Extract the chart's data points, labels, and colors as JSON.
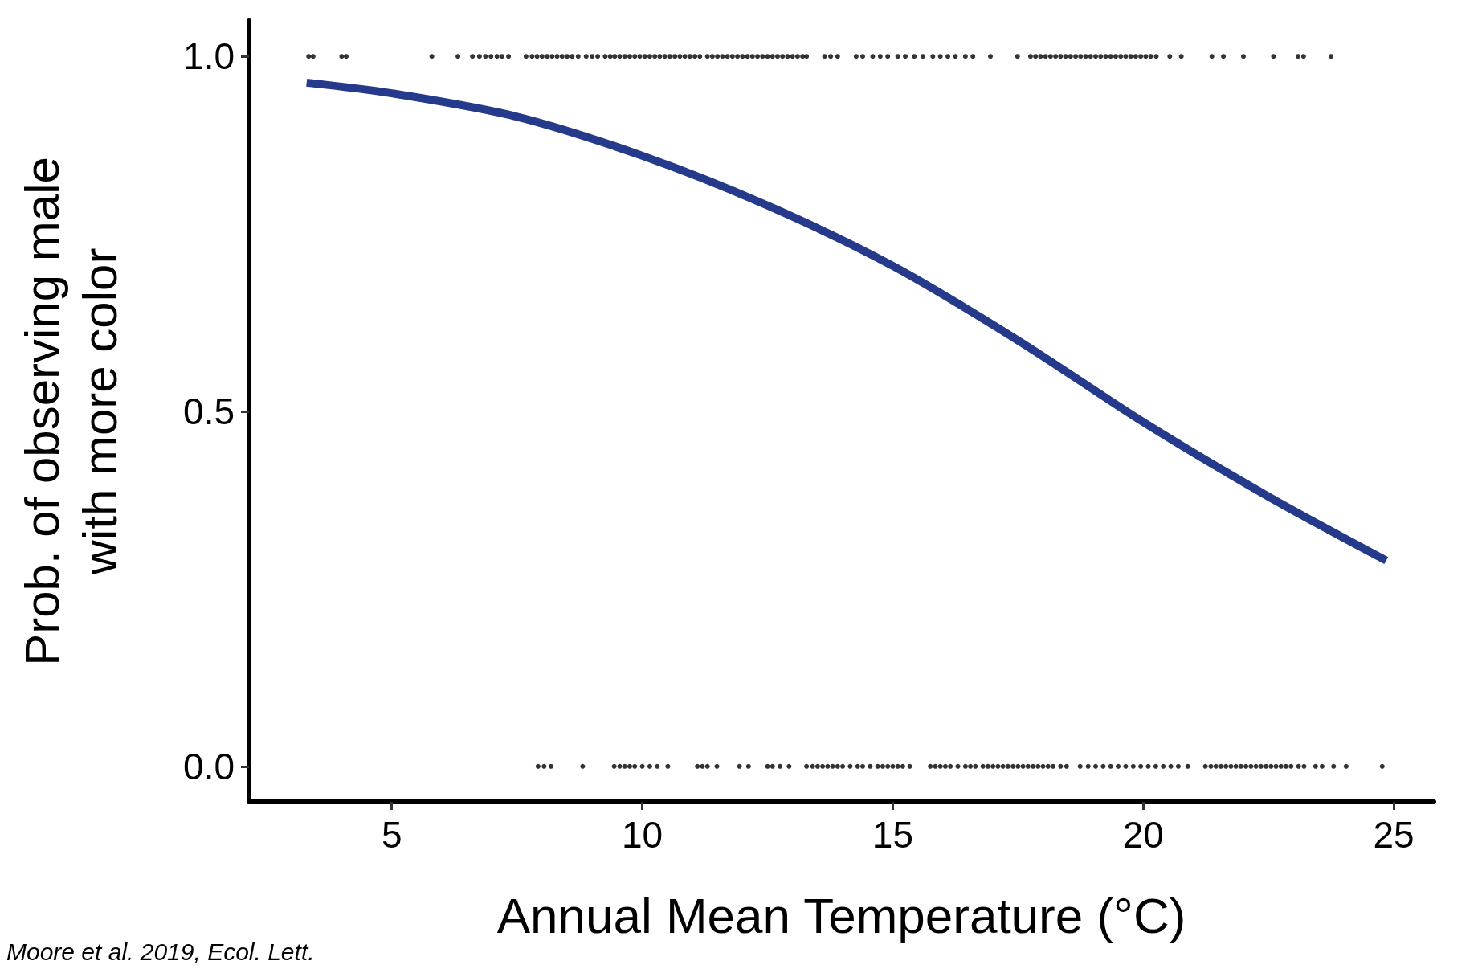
{
  "chart_data": {
    "type": "line",
    "xlabel": "Annual Mean Temperature (°C)",
    "ylabel": "Prob. of observing male\nwith more color",
    "annotations": [
      "Moore et al. 2019, Ecol. Lett."
    ],
    "xlim": [
      2.15,
      25.8
    ],
    "xticks": [
      5,
      10,
      15,
      20,
      25
    ],
    "ylim": [
      -0.05,
      1.05
    ],
    "yticks": [
      {
        "value": 0,
        "label": "0.0"
      },
      {
        "value": 0.5,
        "label": "0.5"
      },
      {
        "value": 1,
        "label": "1.0"
      }
    ],
    "series": [
      {
        "color": "#253a8a",
        "marker": "none",
        "x": [
          3.3,
          5,
          7.5,
          10,
          12.5,
          15,
          17.5,
          20,
          22.5,
          24.85
        ],
        "values": [
          0.963,
          0.948,
          0.915,
          0.86,
          0.79,
          0.705,
          0.6,
          0.485,
          0.38,
          0.29
        ]
      },
      {
        "type": "scatter",
        "color": "#000000",
        "x": [
          3.34,
          3.43,
          4.0,
          4.09,
          5.8,
          6.32,
          6.61,
          6.75,
          6.87,
          6.98,
          7.1,
          7.2,
          7.33,
          7.68,
          7.8,
          7.9,
          8.0,
          8.1,
          8.2,
          8.3,
          8.4,
          8.5,
          8.6,
          8.72,
          8.88,
          9.0,
          9.11,
          9.26,
          9.36,
          9.45,
          9.55,
          9.65,
          9.75,
          9.85,
          9.95,
          10.05,
          10.15,
          10.25,
          10.35,
          10.45,
          10.55,
          10.65,
          10.75,
          10.85,
          10.95,
          11.05,
          11.15,
          11.3,
          11.4,
          11.5,
          11.6,
          11.7,
          11.8,
          11.9,
          12.0,
          12.1,
          12.2,
          12.3,
          12.4,
          12.5,
          12.6,
          12.7,
          12.8,
          12.9,
          13.0,
          13.1,
          13.2,
          13.28,
          13.64,
          13.76,
          13.9,
          14.27,
          14.4,
          14.6,
          14.75,
          14.9,
          15.1,
          15.25,
          15.43,
          15.6,
          15.8,
          15.95,
          16.1,
          16.25,
          16.45,
          16.6,
          16.95,
          17.49,
          17.75,
          17.85,
          17.95,
          18.05,
          18.15,
          18.25,
          18.35,
          18.45,
          18.55,
          18.65,
          18.75,
          18.85,
          18.95,
          19.05,
          19.15,
          19.25,
          19.35,
          19.45,
          19.55,
          19.65,
          19.75,
          19.85,
          19.95,
          20.05,
          20.15,
          20.26,
          20.53,
          20.76,
          21.37,
          21.6,
          22.0,
          22.6,
          23.09,
          23.2,
          23.75
        ],
        "values": [
          1,
          1,
          1,
          1,
          1,
          1,
          1,
          1,
          1,
          1,
          1,
          1,
          1,
          1,
          1,
          1,
          1,
          1,
          1,
          1,
          1,
          1,
          1,
          1,
          1,
          1,
          1,
          1,
          1,
          1,
          1,
          1,
          1,
          1,
          1,
          1,
          1,
          1,
          1,
          1,
          1,
          1,
          1,
          1,
          1,
          1,
          1,
          1,
          1,
          1,
          1,
          1,
          1,
          1,
          1,
          1,
          1,
          1,
          1,
          1,
          1,
          1,
          1,
          1,
          1,
          1,
          1,
          1,
          1,
          1,
          1,
          1,
          1,
          1,
          1,
          1,
          1,
          1,
          1,
          1,
          1,
          1,
          1,
          1,
          1,
          1,
          1,
          1,
          1,
          1,
          1,
          1,
          1,
          1,
          1,
          1,
          1,
          1,
          1,
          1,
          1,
          1,
          1,
          1,
          1,
          1,
          1,
          1,
          1,
          1,
          1,
          1,
          1,
          1,
          1,
          1,
          1,
          1,
          1,
          1,
          1,
          1,
          1
        ]
      },
      {
        "type": "scatter",
        "color": "#000000",
        "x": [
          7.92,
          8.04,
          8.18,
          8.81,
          9.44,
          9.55,
          9.65,
          9.75,
          9.85,
          10.0,
          10.15,
          10.3,
          10.51,
          11.1,
          11.2,
          11.3,
          11.49,
          11.94,
          12.12,
          12.5,
          12.6,
          12.75,
          12.93,
          13.28,
          13.4,
          13.5,
          13.6,
          13.7,
          13.8,
          13.9,
          14.0,
          14.15,
          14.3,
          14.4,
          14.55,
          14.7,
          14.8,
          14.9,
          15.0,
          15.1,
          15.2,
          15.34,
          15.75,
          15.85,
          15.95,
          16.05,
          16.15,
          16.3,
          16.45,
          16.55,
          16.65,
          16.8,
          16.9,
          17.0,
          17.1,
          17.2,
          17.3,
          17.4,
          17.5,
          17.6,
          17.7,
          17.8,
          17.9,
          18.0,
          18.1,
          18.2,
          18.35,
          18.47,
          18.74,
          18.9,
          19.05,
          19.2,
          19.35,
          19.5,
          19.65,
          19.8,
          19.95,
          20.1,
          20.25,
          20.4,
          20.55,
          20.7,
          20.89,
          21.24,
          21.35,
          21.45,
          21.55,
          21.65,
          21.75,
          21.85,
          21.95,
          22.05,
          22.15,
          22.25,
          22.35,
          22.45,
          22.55,
          22.65,
          22.75,
          22.85,
          22.95,
          23.1,
          23.21,
          23.44,
          23.57,
          23.8,
          24.05,
          24.77
        ],
        "values": [
          0,
          0,
          0,
          0,
          0,
          0,
          0,
          0,
          0,
          0,
          0,
          0,
          0,
          0,
          0,
          0,
          0,
          0,
          0,
          0,
          0,
          0,
          0,
          0,
          0,
          0,
          0,
          0,
          0,
          0,
          0,
          0,
          0,
          0,
          0,
          0,
          0,
          0,
          0,
          0,
          0,
          0,
          0,
          0,
          0,
          0,
          0,
          0,
          0,
          0,
          0,
          0,
          0,
          0,
          0,
          0,
          0,
          0,
          0,
          0,
          0,
          0,
          0,
          0,
          0,
          0,
          0,
          0,
          0,
          0,
          0,
          0,
          0,
          0,
          0,
          0,
          0,
          0,
          0,
          0,
          0,
          0,
          0,
          0,
          0,
          0,
          0,
          0,
          0,
          0,
          0,
          0,
          0,
          0,
          0,
          0,
          0,
          0,
          0,
          0,
          0,
          0,
          0,
          0,
          0,
          0,
          0,
          0
        ]
      }
    ]
  }
}
